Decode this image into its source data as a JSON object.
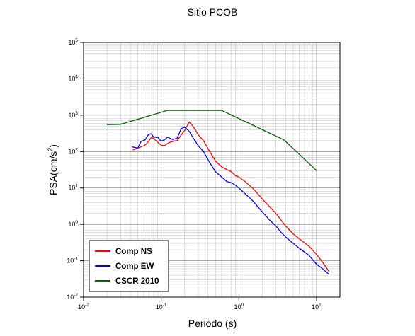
{
  "chart_data": {
    "type": "line",
    "title": "Sitio PCOB",
    "xlabel": "Periodo (s)",
    "ylabel": "PSA(cm/s²)",
    "ylabel_base": "PSA(cm/s",
    "ylabel_sup": "2",
    "ylabel_end": ")",
    "x_scale": "log",
    "y_scale": "log",
    "xlim": [
      0.01,
      20
    ],
    "ylim": [
      0.01,
      100000
    ],
    "grid": true,
    "legend_position": "bottom-left",
    "x_ticks": [
      {
        "value": 0.01,
        "base": "10",
        "exp": "-2"
      },
      {
        "value": 0.1,
        "base": "10",
        "exp": "-1"
      },
      {
        "value": 1,
        "base": "10",
        "exp": "0"
      },
      {
        "value": 10,
        "base": "10",
        "exp": "1"
      }
    ],
    "y_ticks": [
      {
        "value": 0.01,
        "base": "10",
        "exp": "-2"
      },
      {
        "value": 0.1,
        "base": "10",
        "exp": "-1"
      },
      {
        "value": 1,
        "base": "10",
        "exp": "0"
      },
      {
        "value": 10,
        "base": "10",
        "exp": "1"
      },
      {
        "value": 100,
        "base": "10",
        "exp": "2"
      },
      {
        "value": 1000,
        "base": "10",
        "exp": "3"
      },
      {
        "value": 10000,
        "base": "10",
        "exp": "4"
      },
      {
        "value": 100000,
        "base": "10",
        "exp": "5"
      }
    ],
    "series": [
      {
        "name": "Comp NS",
        "color": "#ff0000",
        "points": [
          [
            0.043,
            110
          ],
          [
            0.05,
            125
          ],
          [
            0.055,
            135
          ],
          [
            0.062,
            150
          ],
          [
            0.068,
            185
          ],
          [
            0.074,
            240
          ],
          [
            0.08,
            235
          ],
          [
            0.09,
            180
          ],
          [
            0.1,
            150
          ],
          [
            0.11,
            145
          ],
          [
            0.125,
            175
          ],
          [
            0.14,
            190
          ],
          [
            0.16,
            200
          ],
          [
            0.18,
            280
          ],
          [
            0.2,
            380
          ],
          [
            0.23,
            650
          ],
          [
            0.26,
            480
          ],
          [
            0.3,
            290
          ],
          [
            0.35,
            200
          ],
          [
            0.4,
            120
          ],
          [
            0.5,
            55
          ],
          [
            0.6,
            38
          ],
          [
            0.7,
            32
          ],
          [
            0.8,
            28
          ],
          [
            0.9,
            22
          ],
          [
            1.0,
            20
          ],
          [
            1.2,
            15
          ],
          [
            1.5,
            10
          ],
          [
            2.0,
            5
          ],
          [
            2.5,
            3
          ],
          [
            3.0,
            2
          ],
          [
            3.5,
            1.3
          ],
          [
            4.0,
            0.9
          ],
          [
            5.0,
            0.55
          ],
          [
            6.0,
            0.4
          ],
          [
            8.0,
            0.25
          ],
          [
            10.0,
            0.15
          ],
          [
            12.0,
            0.09
          ],
          [
            14.5,
            0.05
          ]
        ]
      },
      {
        "name": "Comp EW",
        "color": "#0000ff",
        "points": [
          [
            0.042,
            135
          ],
          [
            0.05,
            125
          ],
          [
            0.055,
            190
          ],
          [
            0.062,
            210
          ],
          [
            0.068,
            290
          ],
          [
            0.074,
            310
          ],
          [
            0.08,
            250
          ],
          [
            0.09,
            245
          ],
          [
            0.1,
            195
          ],
          [
            0.11,
            210
          ],
          [
            0.12,
            250
          ],
          [
            0.14,
            215
          ],
          [
            0.16,
            230
          ],
          [
            0.18,
            420
          ],
          [
            0.2,
            470
          ],
          [
            0.23,
            360
          ],
          [
            0.26,
            230
          ],
          [
            0.3,
            145
          ],
          [
            0.35,
            100
          ],
          [
            0.4,
            60
          ],
          [
            0.5,
            28
          ],
          [
            0.6,
            20
          ],
          [
            0.7,
            15
          ],
          [
            0.8,
            14
          ],
          [
            0.9,
            12
          ],
          [
            1.0,
            10
          ],
          [
            1.2,
            7
          ],
          [
            1.5,
            4.5
          ],
          [
            2.0,
            2.2
          ],
          [
            2.5,
            1.3
          ],
          [
            3.0,
            0.9
          ],
          [
            3.5,
            0.6
          ],
          [
            4.0,
            0.45
          ],
          [
            5.0,
            0.3
          ],
          [
            6.0,
            0.22
          ],
          [
            8.0,
            0.14
          ],
          [
            10.0,
            0.08
          ],
          [
            12.0,
            0.06
          ],
          [
            14.5,
            0.042
          ]
        ]
      },
      {
        "name": "CSCR 2010",
        "color": "#006400",
        "points": [
          [
            0.02,
            550
          ],
          [
            0.03,
            560
          ],
          [
            0.12,
            1350
          ],
          [
            0.6,
            1350
          ],
          [
            3.8,
            210
          ],
          [
            10.0,
            30
          ]
        ]
      }
    ]
  }
}
